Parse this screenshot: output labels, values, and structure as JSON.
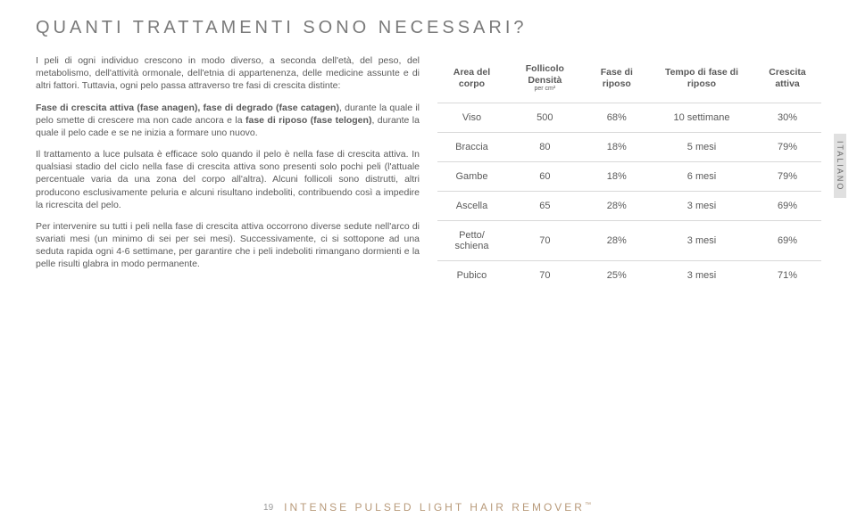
{
  "title": "QUANTI TRATTAMENTI SONO NECESSARI?",
  "side_tab": "ITALIANO",
  "paragraphs": {
    "p1_a": "I peli di ogni individuo crescono in modo diverso, a seconda dell'età, del peso, del metabolismo, dell'attività ormonale, dell'etnia di appartenenza, delle medicine assunte e di altri fattori. Tuttavia, ogni pelo passa attraverso tre fasi di crescita distinte:",
    "p2_b1": "Fase di crescita attiva (fase anagen), fase di degrado (fase catagen)",
    "p2_a": ", durante la quale il pelo smette di crescere ma non cade ancora e la ",
    "p2_b2": "fase di riposo (fase telogen)",
    "p2_c": ", durante la quale il pelo cade e se ne inizia a formare uno nuovo.",
    "p3": "Il trattamento a luce pulsata è efficace solo quando il pelo è nella fase di crescita attiva. In qualsiasi stadio del ciclo nella fase di crescita attiva sono presenti solo pochi peli (l'attuale percentuale varia da una zona del corpo all'altra). Alcuni follicoli sono distrutti, altri producono esclusivamente peluria e alcuni risultano indeboliti, contribuendo così a impedire la ricrescita del pelo.",
    "p4": "Per intervenire su tutti i peli nella fase di crescita attiva occorrono diverse sedute nell'arco di svariati mesi (un minimo di sei per sei mesi). Successivamente, ci si sottopone ad una seduta rapida ogni 4-6 settimane, per garantire che i peli indeboliti rimangano dormienti e la pelle risulti glabra in modo permanente."
  },
  "table": {
    "headers": {
      "h1": "Area del corpo",
      "h2": "Follicolo Densità",
      "h2_sub": "per cm²",
      "h3": "Fase di riposo",
      "h4": "Tempo di fase di riposo",
      "h5": "Crescita attiva"
    },
    "rows": [
      {
        "area": "Viso",
        "dens": "500",
        "riposo": "68%",
        "tempo": "10 settimane",
        "attiva": "30%"
      },
      {
        "area": "Braccia",
        "dens": "80",
        "riposo": "18%",
        "tempo": "5 mesi",
        "attiva": "79%"
      },
      {
        "area": "Gambe",
        "dens": "60",
        "riposo": "18%",
        "tempo": "6 mesi",
        "attiva": "79%"
      },
      {
        "area": "Ascella",
        "dens": "65",
        "riposo": "28%",
        "tempo": "3 mesi",
        "attiva": "69%"
      },
      {
        "area": "Petto/ schiena",
        "dens": "70",
        "riposo": "28%",
        "tempo": "3 mesi",
        "attiva": "69%"
      },
      {
        "area": "Pubico",
        "dens": "70",
        "riposo": "25%",
        "tempo": "3 mesi",
        "attiva": "71%"
      }
    ]
  },
  "footer": {
    "page": "19",
    "product": "INTENSE PULSED LIGHT HAIR REMOVER",
    "tm": "™"
  },
  "colors": {
    "text": "#5a5a5a",
    "accent": "#b89a7a",
    "border": "#d8d8d8",
    "tab_bg": "#e0e0e0"
  }
}
